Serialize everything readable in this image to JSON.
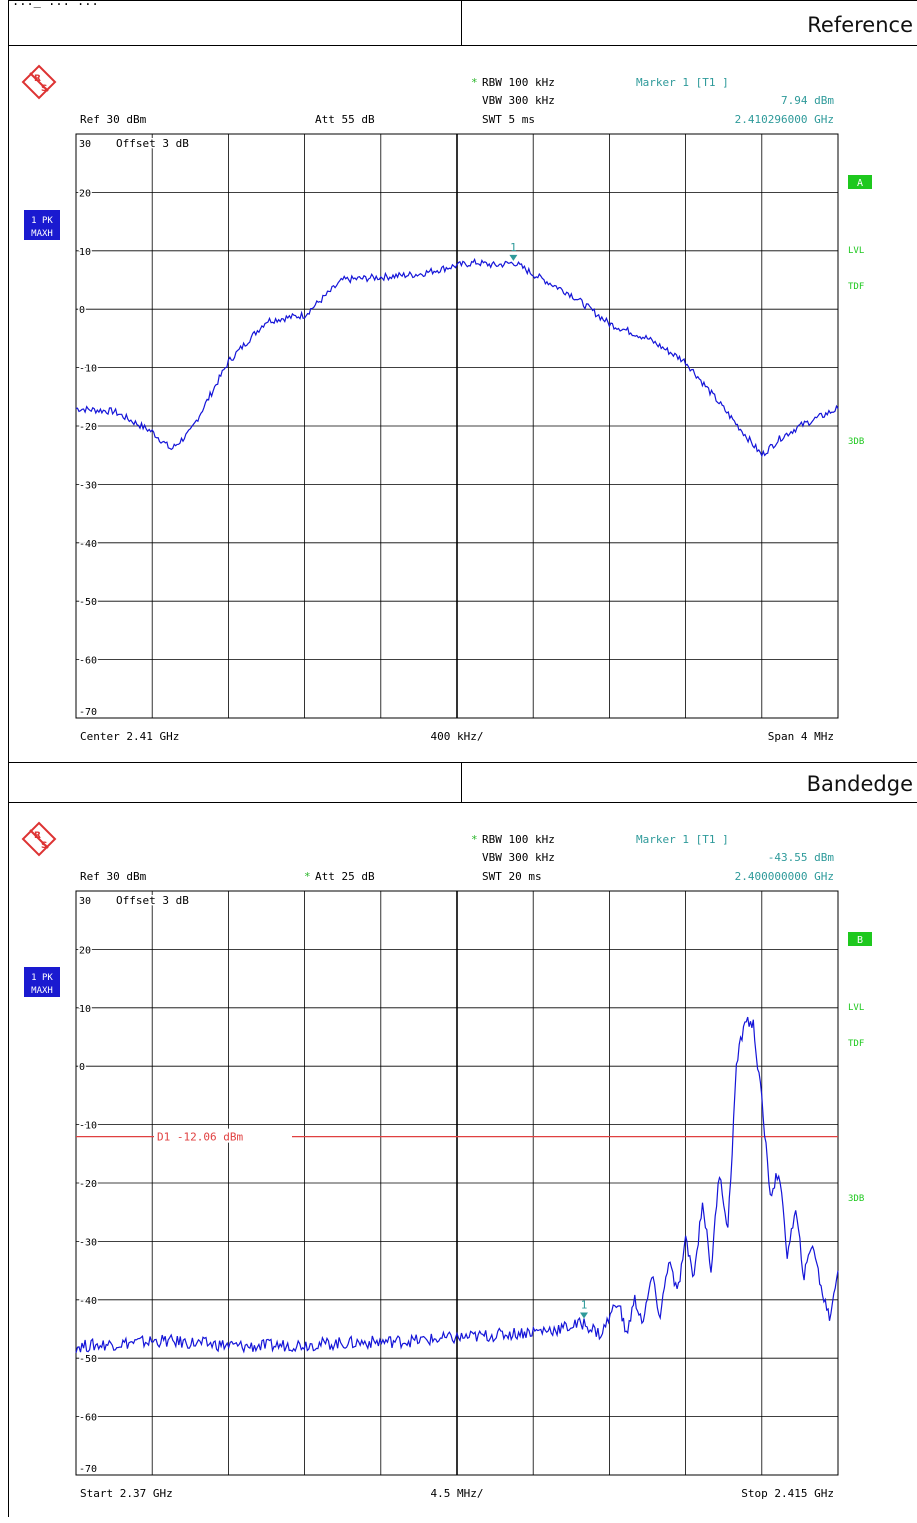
{
  "header_partial": "..._ ... ...",
  "panels": [
    {
      "title": "Reference",
      "ref": "Ref 30 dBm",
      "att_star": false,
      "att": "Att  55 dB",
      "rbw": "RBW 100 kHz",
      "vbw": "VBW 300 kHz",
      "swt": "SWT 5 ms",
      "marker_title": "Marker 1 [T1 ]",
      "marker_level": "7.94 dBm",
      "marker_freq": "2.410296000 GHz",
      "offset": "Offset  3 dB",
      "trace_badge_1": "1 PK",
      "trace_badge_2": "MAXH",
      "side_box": "A",
      "side_labels": [
        "LVL",
        "TDF",
        "3DB"
      ],
      "bottom_left": "Center 2.41 GHz",
      "bottom_mid": "400 kHz/",
      "bottom_right": "Span 4 MHz",
      "colors": {
        "trace": "#1515d8",
        "marker": "#2e9a9a",
        "green": "#1ec81e",
        "line": "#e04040"
      }
    },
    {
      "title": "Bandedge",
      "ref": "Ref 30 dBm",
      "att_star": true,
      "att": "Att  25 dB",
      "rbw": "RBW 100 kHz",
      "vbw": "VBW 300 kHz",
      "swt": "SWT 20 ms",
      "marker_title": "Marker 1 [T1 ]",
      "marker_level": "-43.55 dBm",
      "marker_freq": "2.400000000 GHz",
      "offset": "Offset  3 dB",
      "trace_badge_1": "1 PK",
      "trace_badge_2": "MAXH",
      "side_box": "B",
      "side_labels": [
        "LVL",
        "TDF",
        "3DB"
      ],
      "display_line_label": "D1 -12.06 dBm",
      "bottom_left": "Start 2.37 GHz",
      "bottom_mid": "4.5 MHz/",
      "bottom_right": "Stop 2.415 GHz",
      "colors": {
        "trace": "#1515d8",
        "marker": "#2e9a9a",
        "green": "#1ec81e",
        "line": "#e04040"
      }
    }
  ],
  "chart_data": [
    {
      "type": "line",
      "title": "Reference",
      "xlabel": "",
      "ylabel": "",
      "x_unit": "GHz",
      "xlim": [
        2.408,
        2.412
      ],
      "ylim": [
        -70,
        30
      ],
      "y_ticks": [
        30,
        20,
        10,
        0,
        -10,
        -20,
        -30,
        -40,
        -50,
        -60,
        -70
      ],
      "grid": true,
      "marker": {
        "label": "1",
        "x": 2.410296,
        "y": 7.94
      },
      "series": [
        {
          "x": [
            2.408,
            2.4082,
            2.4084,
            2.4085,
            2.4086,
            2.4088,
            2.409,
            2.4092,
            2.4094,
            2.4096,
            2.4098,
            2.41,
            2.4101,
            2.4102,
            2.4103,
            2.4104,
            2.4106,
            2.4108,
            2.411,
            2.4112,
            2.4114,
            2.4116,
            2.4117,
            2.4118,
            2.412
          ],
          "y": [
            -17,
            -17.5,
            -21,
            -24,
            -21,
            -9,
            -2,
            -1,
            5,
            5.5,
            6,
            7.5,
            8,
            7.5,
            8,
            6,
            2.5,
            -2.5,
            -5,
            -9,
            -17,
            -25,
            -22,
            -20,
            -17
          ]
        }
      ]
    },
    {
      "type": "line",
      "title": "Bandedge",
      "xlabel": "",
      "ylabel": "",
      "x_unit": "GHz",
      "xlim": [
        2.37,
        2.415
      ],
      "ylim": [
        -70,
        30
      ],
      "y_ticks": [
        30,
        20,
        10,
        0,
        -10,
        -20,
        -30,
        -40,
        -50,
        -60,
        -70
      ],
      "grid": true,
      "display_line": {
        "label": "D1 -12.06 dBm",
        "y": -12.06
      },
      "marker": {
        "label": "1",
        "x": 2.4,
        "y": -43.55
      },
      "series": [
        {
          "x": [
            2.37,
            2.375,
            2.38,
            2.385,
            2.39,
            2.395,
            2.3985,
            2.4,
            2.401,
            2.402,
            2.4025,
            2.403,
            2.4035,
            2.404,
            2.4045,
            2.405,
            2.4055,
            2.406,
            2.4065,
            2.407,
            2.4075,
            2.408,
            2.4085,
            2.409,
            2.4095,
            2.41,
            2.4105,
            2.411,
            2.4115,
            2.412,
            2.4125,
            2.413,
            2.4135,
            2.414,
            2.4145,
            2.415
          ],
          "y": [
            -48,
            -47,
            -48,
            -47.5,
            -47,
            -46,
            -45,
            -44,
            -46,
            -40,
            -46,
            -40,
            -44,
            -36,
            -43,
            -33,
            -39,
            -30,
            -36,
            -23,
            -35,
            -18,
            -28,
            0,
            8,
            7,
            -6,
            -22,
            -18,
            -32,
            -25,
            -36,
            -30,
            -38,
            -43,
            -35
          ]
        }
      ]
    }
  ]
}
